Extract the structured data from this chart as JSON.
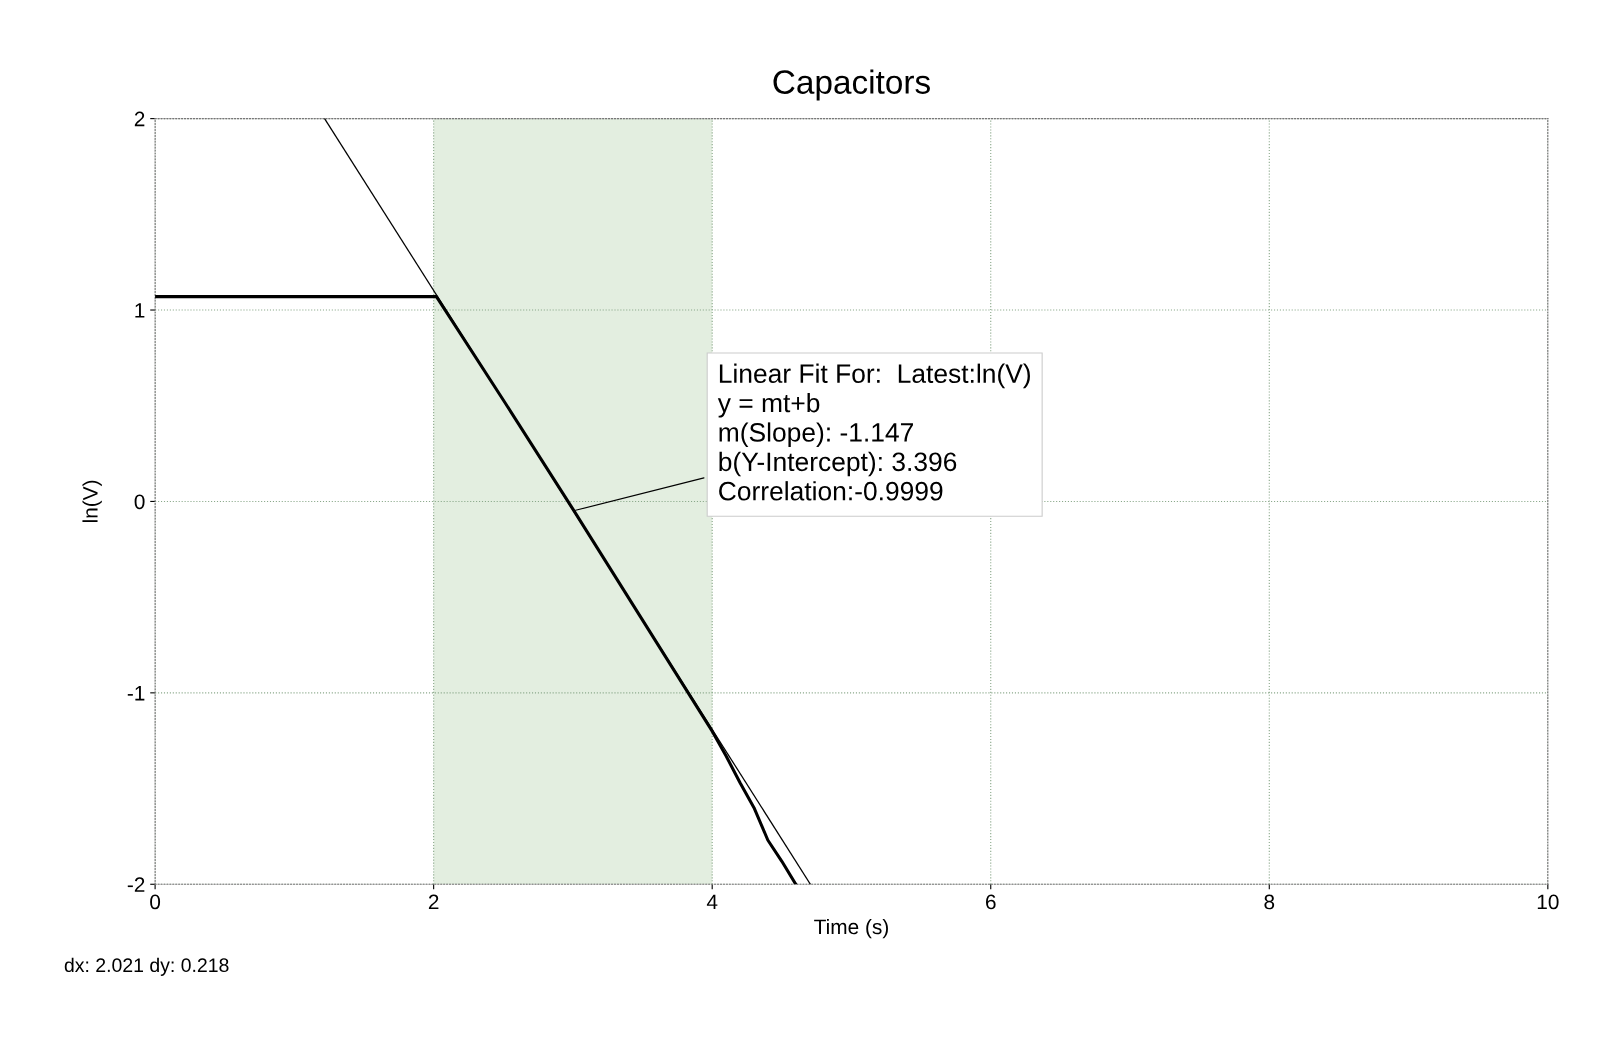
{
  "chart_data": {
    "type": "line",
    "title": "Capacitors",
    "xlabel": "Time (s)",
    "ylabel": "ln(V)",
    "xlim": [
      0,
      10
    ],
    "xticks": [
      0,
      2,
      4,
      6,
      8,
      10
    ],
    "ylim": [
      -2,
      2
    ],
    "yticks": [
      -2,
      -1,
      0,
      1,
      2
    ],
    "grid": true,
    "series": [
      {
        "color": "#000000",
        "x": [
          0,
          0.5,
          1.0,
          1.5,
          2.02,
          2.5,
          3.0,
          3.5,
          4.0,
          4.1,
          4.2,
          4.3,
          4.4,
          4.5,
          4.6
        ],
        "values": [
          1.07,
          1.07,
          1.07,
          1.07,
          1.07,
          0.53,
          -0.04,
          -0.62,
          -1.2,
          -1.33,
          -1.47,
          -1.6,
          -1.77,
          -1.88,
          -2.0
        ]
      },
      {
        "color": "#000000",
        "type": "line",
        "x": [
          1.217,
          4.705
        ],
        "values": [
          2,
          -2
        ]
      }
    ],
    "bands": [
      {
        "axis": "x",
        "from": 2,
        "to": 4,
        "color": "#e3eee0"
      }
    ],
    "annotations": [
      {
        "text": "Linear Fit For:  Latest:ln(V)\ny = mt+b\nm(Slope): -1.147\nb(Y-Intercept): 3.396\nCorrelation:-0.9999",
        "x": 3.0,
        "y": -0.05
      },
      "dx: 2.021 dy: 0.218"
    ]
  }
}
